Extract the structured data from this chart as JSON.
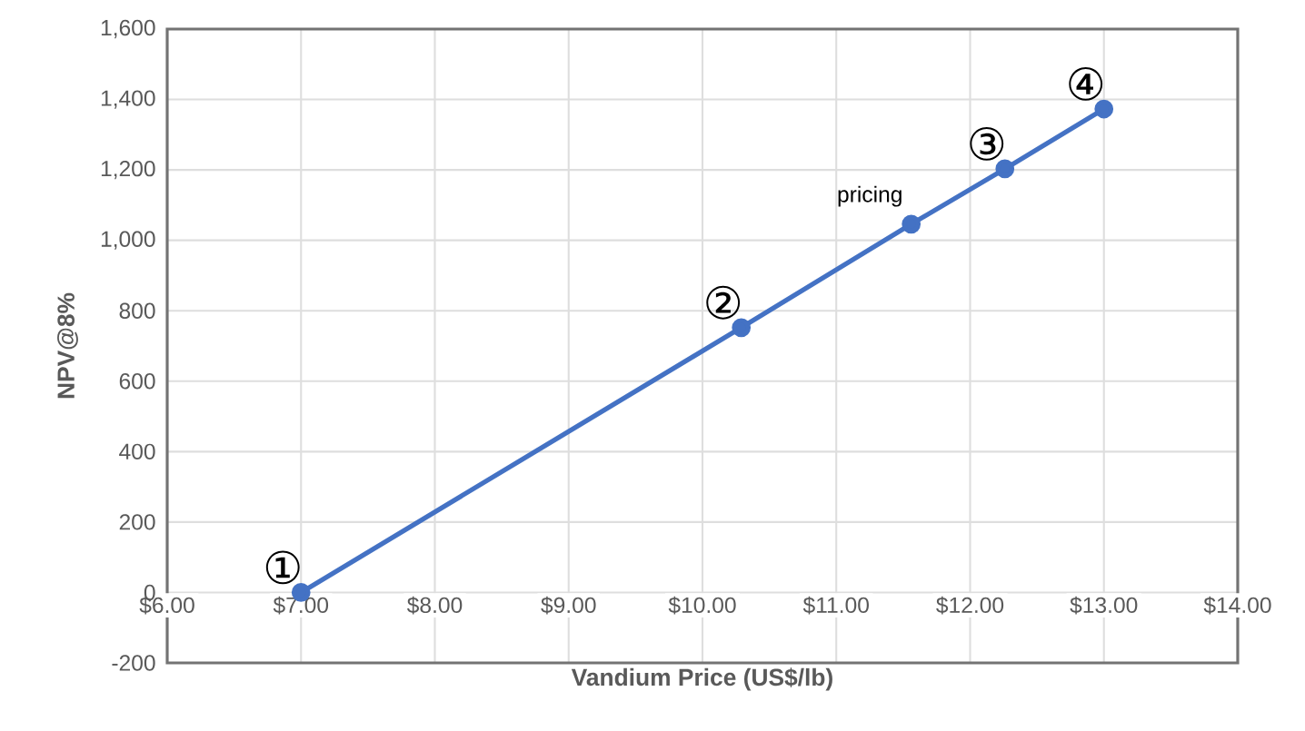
{
  "chart_data": {
    "type": "line",
    "xlabel": "Vandium Price (US$/lb)",
    "ylabel": "NPV@8%",
    "x": [
      7.0,
      10.29,
      11.56,
      12.26,
      13.0
    ],
    "series": [
      {
        "color": "#4472c4",
        "values": [
          0,
          752,
          1046,
          1203,
          1373
        ]
      }
    ],
    "xlim": [
      6,
      14
    ],
    "ylim": [
      -200,
      1600
    ],
    "xticks": [
      {
        "value": 6,
        "label": "$6.00"
      },
      {
        "value": 7,
        "label": "$7.00"
      },
      {
        "value": 8,
        "label": "$8.00"
      },
      {
        "value": 9,
        "label": "$9.00"
      },
      {
        "value": 10,
        "label": "$10.00"
      },
      {
        "value": 11,
        "label": "$11.00"
      },
      {
        "value": 12,
        "label": "$12.00"
      },
      {
        "value": 13,
        "label": "$13.00"
      },
      {
        "value": 14,
        "label": "$14.00"
      }
    ],
    "yticks": [
      -200,
      0,
      200,
      400,
      600,
      800,
      {
        "value": 1000,
        "label": "1,000"
      },
      {
        "value": 1200,
        "label": "1,200"
      },
      {
        "value": 1400,
        "label": "1,400"
      },
      {
        "value": 1600,
        "label": "1,600"
      }
    ],
    "annotations": [
      {
        "text": "①",
        "x": 7.0,
        "y": 0
      },
      {
        "text": "②",
        "x": 10.29,
        "y": 752
      },
      {
        "text": "pricing",
        "x": 11.56,
        "y": 1046
      },
      {
        "text": "③",
        "x": 12.26,
        "y": 1203
      },
      {
        "text": "④",
        "x": 13.0,
        "y": 1373
      }
    ],
    "grid": true,
    "marker": "circle",
    "line_style": "solid"
  }
}
